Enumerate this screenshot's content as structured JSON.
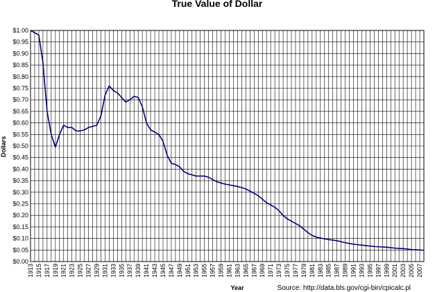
{
  "chart_data": {
    "type": "line",
    "title": "True Value of Dollar",
    "xlabel": "Year",
    "ylabel": "Dollars",
    "source": "Source:  http://data.bls.gov/cgi-bin/cpicalc.pl",
    "xlim": [
      1913,
      2008
    ],
    "ylim": [
      0,
      1.0
    ],
    "y_ticks": [
      "$0.00",
      "$0.05",
      "$0.10",
      "$0.15",
      "$0.20",
      "$0.25",
      "$0.30",
      "$0.35",
      "$0.40",
      "$0.45",
      "$0.50",
      "$0.55",
      "$0.60",
      "$0.65",
      "$0.70",
      "$0.75",
      "$0.80",
      "$0.85",
      "$0.90",
      "$0.95",
      "$1.00"
    ],
    "x_ticks": [
      "1913",
      "1915",
      "1917",
      "1919",
      "1921",
      "1923",
      "1925",
      "1927",
      "1929",
      "1931",
      "1933",
      "1935",
      "1937",
      "1939",
      "1941",
      "1943",
      "1945",
      "1947",
      "1949",
      "1951",
      "1953",
      "1955",
      "1957",
      "1959",
      "1961",
      "1963",
      "1965",
      "1967",
      "1969",
      "1971",
      "1973",
      "1975",
      "1977",
      "1979",
      "1981",
      "1983",
      "1985",
      "1987",
      "1989",
      "1991",
      "1993",
      "1995",
      "1997",
      "1999",
      "2001",
      "2003",
      "2005",
      "2007"
    ],
    "grid": true,
    "line_color": "#00007a",
    "series": [
      {
        "x": [
          1913,
          1914,
          1915,
          1916,
          1917,
          1918,
          1919,
          1920,
          1921,
          1922,
          1923,
          1924,
          1925,
          1926,
          1927,
          1928,
          1929,
          1930,
          1931,
          1932,
          1933,
          1934,
          1935,
          1936,
          1937,
          1938,
          1939,
          1940,
          1941,
          1942,
          1943,
          1944,
          1945,
          1946,
          1947,
          1948,
          1949,
          1950,
          1951,
          1952,
          1953,
          1954,
          1955,
          1956,
          1957,
          1958,
          1959,
          1960,
          1961,
          1962,
          1963,
          1964,
          1965,
          1966,
          1967,
          1968,
          1969,
          1970,
          1971,
          1972,
          1973,
          1974,
          1975,
          1976,
          1977,
          1978,
          1979,
          1980,
          1981,
          1982,
          1983,
          1984,
          1985,
          1986,
          1987,
          1988,
          1989,
          1990,
          1991,
          1992,
          1993,
          1994,
          1995,
          1996,
          1997,
          1998,
          1999,
          2000,
          2001,
          2002,
          2003,
          2004,
          2005,
          2006,
          2007,
          2008
        ],
        "y": [
          1.0,
          0.99,
          0.98,
          0.86,
          0.65,
          0.55,
          0.495,
          0.55,
          0.59,
          0.58,
          0.58,
          0.565,
          0.565,
          0.57,
          0.58,
          0.585,
          0.59,
          0.63,
          0.72,
          0.76,
          0.74,
          0.73,
          0.71,
          0.69,
          0.7,
          0.715,
          0.71,
          0.67,
          0.6,
          0.57,
          0.56,
          0.55,
          0.52,
          0.46,
          0.425,
          0.42,
          0.41,
          0.39,
          0.38,
          0.375,
          0.37,
          0.37,
          0.37,
          0.365,
          0.355,
          0.345,
          0.34,
          0.335,
          0.332,
          0.328,
          0.325,
          0.32,
          0.314,
          0.305,
          0.295,
          0.285,
          0.27,
          0.255,
          0.245,
          0.235,
          0.22,
          0.2,
          0.185,
          0.175,
          0.165,
          0.155,
          0.14,
          0.125,
          0.113,
          0.106,
          0.102,
          0.098,
          0.095,
          0.093,
          0.09,
          0.086,
          0.082,
          0.078,
          0.075,
          0.073,
          0.071,
          0.069,
          0.067,
          0.065,
          0.064,
          0.063,
          0.062,
          0.06,
          0.058,
          0.057,
          0.056,
          0.054,
          0.052,
          0.051,
          0.05,
          0.049
        ]
      }
    ]
  }
}
